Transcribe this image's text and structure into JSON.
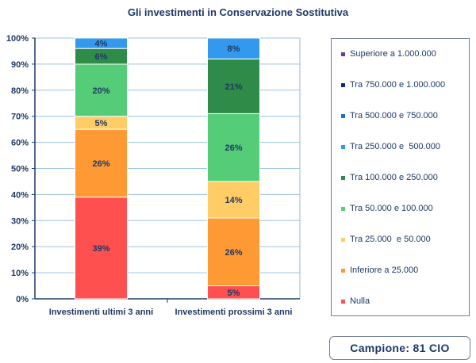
{
  "chart_data": {
    "type": "bar",
    "stacked": true,
    "title": "Gli investimenti in Conservazione Sostitutiva",
    "categories": [
      "Investimenti ultimi 3 anni",
      "Investimenti prossimi 3 anni"
    ],
    "ylim": [
      0,
      100
    ],
    "y_ticks": [
      "0%",
      "10%",
      "20%",
      "30%",
      "40%",
      "50%",
      "60%",
      "70%",
      "80%",
      "90%",
      "100%"
    ],
    "grid": true,
    "legend_position": "right",
    "series": [
      {
        "name": "Nulla",
        "color": "#ff5050",
        "values": [
          39,
          5
        ]
      },
      {
        "name": "Inferiore a 25.000",
        "color": "#ff9933",
        "values": [
          26,
          26
        ]
      },
      {
        "name": "Tra 25.000  e 50.000",
        "color": "#ffcc66",
        "values": [
          5,
          14
        ]
      },
      {
        "name": "Tra 50.000 e 100.000",
        "color": "#55cc77",
        "values": [
          20,
          26
        ]
      },
      {
        "name": "Tra 100.000 e 250.000",
        "color": "#2e8b48",
        "values": [
          6,
          21
        ]
      },
      {
        "name": "Tra 250.000 e  500.000",
        "color": "#3399ee",
        "values": [
          4,
          8
        ]
      },
      {
        "name": "Tra 500.000 e 750.000",
        "color": "#1f6fc5",
        "values": [
          0,
          0
        ]
      },
      {
        "name": "Tra 750.000 e 1.000.000",
        "color": "#0d2b66",
        "values": [
          0,
          0
        ]
      },
      {
        "name": "Superiore a 1.000.000",
        "color": "#6a3d8f",
        "values": [
          0,
          0
        ]
      }
    ],
    "data_labels": [
      [
        "39%",
        "26%",
        "5%",
        "20%",
        "6%",
        "4%",
        "",
        "",
        ""
      ],
      [
        "5%",
        "26%",
        "14%",
        "26%",
        "21%",
        "8%",
        "",
        "",
        ""
      ]
    ]
  },
  "sample_label": "Campione: 81 CIO"
}
